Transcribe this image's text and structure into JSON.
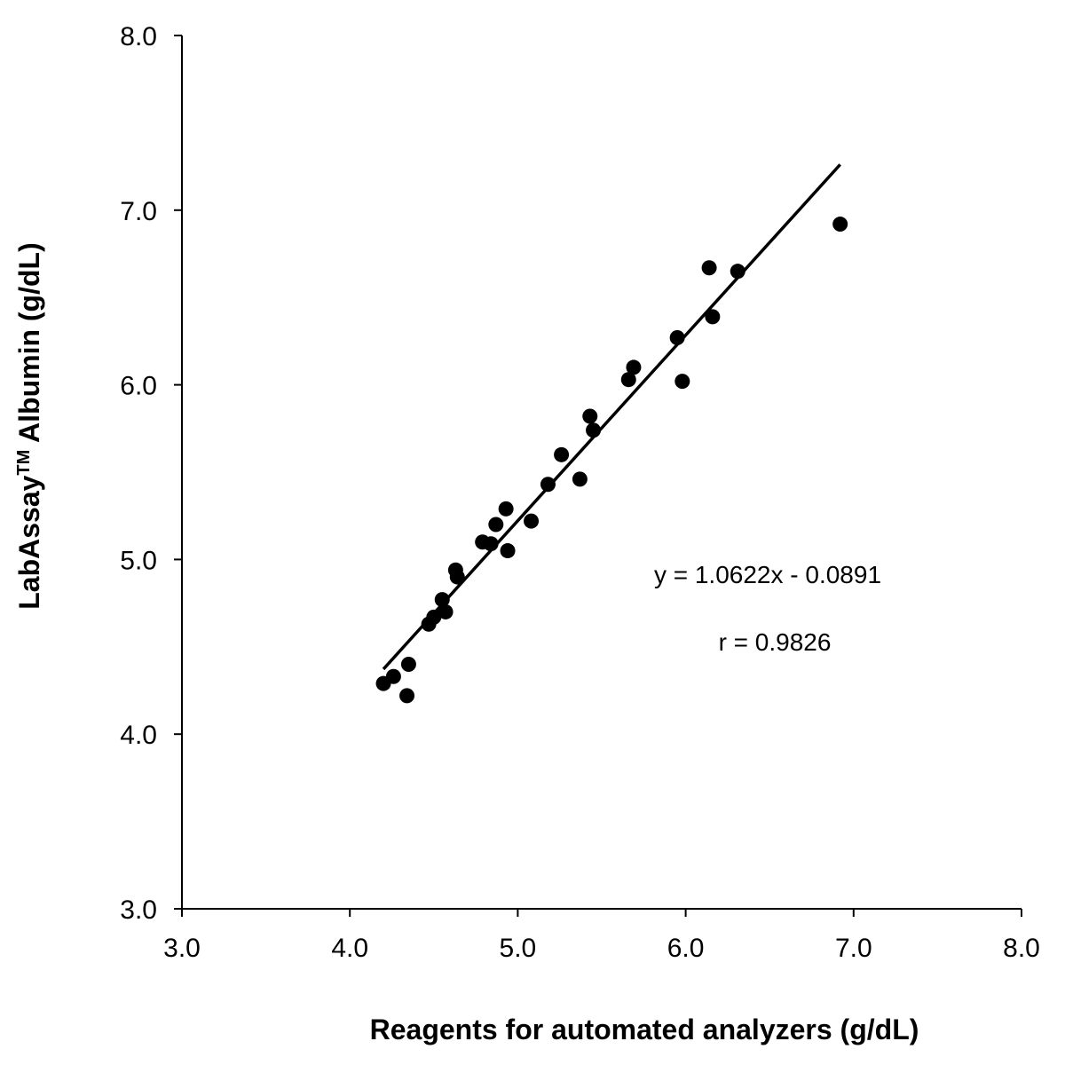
{
  "chart_data": {
    "type": "scatter",
    "xlabel": "Reagents for automated analyzers (g/dL)",
    "ylabel": {
      "main": "LabAssay",
      "superscript": "TM",
      "rest": " Albumin (g/dL)"
    },
    "xlim": [
      3.0,
      8.0
    ],
    "ylim": [
      3.0,
      8.0
    ],
    "x_ticks": [
      "3.0",
      "4.0",
      "5.0",
      "6.0",
      "7.0",
      "8.0"
    ],
    "y_ticks": [
      "3.0",
      "4.0",
      "5.0",
      "6.0",
      "7.0",
      "8.0"
    ],
    "grid": false,
    "legend": false,
    "points": [
      {
        "x": 4.2,
        "y": 4.29
      },
      {
        "x": 4.26,
        "y": 4.33
      },
      {
        "x": 4.34,
        "y": 4.22
      },
      {
        "x": 4.35,
        "y": 4.4
      },
      {
        "x": 4.47,
        "y": 4.63
      },
      {
        "x": 4.5,
        "y": 4.67
      },
      {
        "x": 4.55,
        "y": 4.77
      },
      {
        "x": 4.57,
        "y": 4.7
      },
      {
        "x": 4.63,
        "y": 4.94
      },
      {
        "x": 4.64,
        "y": 4.9
      },
      {
        "x": 4.79,
        "y": 5.1
      },
      {
        "x": 4.84,
        "y": 5.09
      },
      {
        "x": 4.87,
        "y": 5.2
      },
      {
        "x": 4.93,
        "y": 5.29
      },
      {
        "x": 4.94,
        "y": 5.05
      },
      {
        "x": 5.08,
        "y": 5.22
      },
      {
        "x": 5.18,
        "y": 5.43
      },
      {
        "x": 5.26,
        "y": 5.6
      },
      {
        "x": 5.37,
        "y": 5.46
      },
      {
        "x": 5.43,
        "y": 5.82
      },
      {
        "x": 5.45,
        "y": 5.74
      },
      {
        "x": 5.66,
        "y": 6.03
      },
      {
        "x": 5.69,
        "y": 6.1
      },
      {
        "x": 5.95,
        "y": 6.27
      },
      {
        "x": 5.98,
        "y": 6.02
      },
      {
        "x": 6.14,
        "y": 6.67
      },
      {
        "x": 6.16,
        "y": 6.39
      },
      {
        "x": 6.31,
        "y": 6.65
      },
      {
        "x": 6.92,
        "y": 6.92
      }
    ],
    "trendline": {
      "slope": 1.0622,
      "intercept": -0.0891,
      "x_range": [
        4.2,
        6.92
      ]
    },
    "annotations": {
      "equation": "y = 1.0622x - 0.0891",
      "r": "r = 0.9826"
    },
    "colors": {
      "marker": "#000000",
      "line": "#000000",
      "axis": "#000000"
    }
  }
}
